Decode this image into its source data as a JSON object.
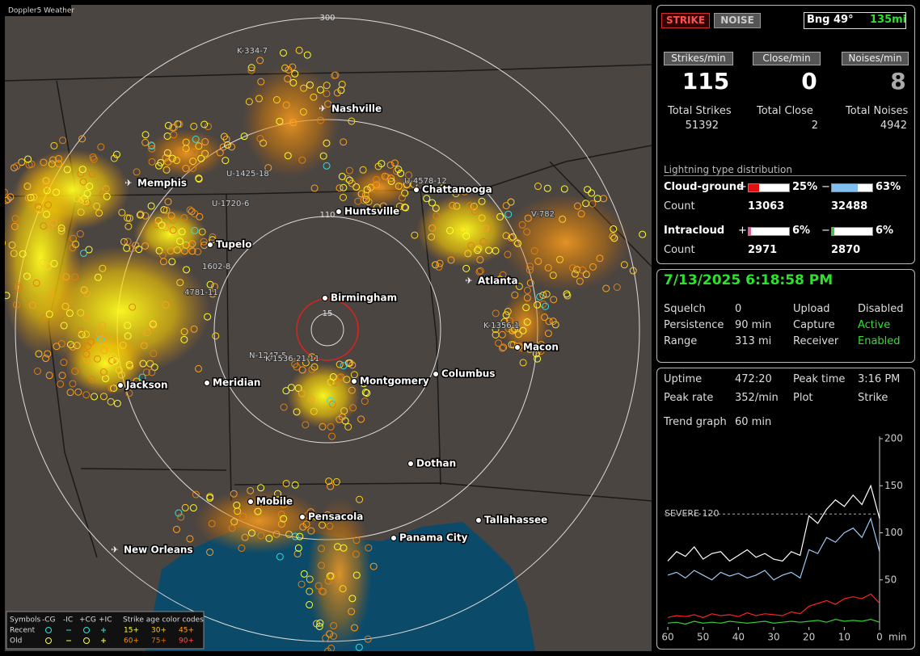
{
  "window_title": "Doppler5 Weather",
  "map": {
    "range_labels": [
      "300",
      "110",
      "15"
    ],
    "cities": [
      "Nashville",
      "Memphis",
      "Chattanooga",
      "Huntsville",
      "Tupelo",
      "Atlanta",
      "Birmingham",
      "Macon",
      "Montgomery",
      "Columbus",
      "Jackson",
      "Meridian",
      "Dothan",
      "Mobile",
      "Pensacola",
      "Tallahassee",
      "Panama City",
      "New Orleans"
    ],
    "storm_ids": [
      "K-334-7",
      "U-1425-18",
      "U-4578-12",
      "U-1720-6",
      "1602-8",
      "4781-11",
      "V-782",
      "K-1356-1",
      "N-1247-5",
      "K-1536-21-11"
    ]
  },
  "legend": {
    "symbols_label": "Symbols",
    "types": [
      "-CG",
      "-IC",
      "+CG",
      "+IC"
    ],
    "age_title": "Strike age color codes",
    "rows": [
      {
        "label": "Recent",
        "ages": [
          "15+",
          "30+",
          "45+"
        ]
      },
      {
        "label": "Old",
        "ages": [
          "60+",
          "75+",
          "90+"
        ]
      }
    ]
  },
  "status": {
    "strike": "STRIKE",
    "noise": "NOISE",
    "bearing": "Bng 49°",
    "distance": "135mi"
  },
  "rates": [
    {
      "header": "Strikes/min",
      "value": 115,
      "total_label": "Total Strikes",
      "total": 51392
    },
    {
      "header": "Close/min",
      "value": 0,
      "total_label": "Total Close",
      "total": 2
    },
    {
      "header": "Noises/min",
      "value": 8,
      "total_label": "Total Noises",
      "total": 4942
    }
  ],
  "distribution": {
    "title": "Lightning type distribution",
    "rows": [
      {
        "label": "Cloud-ground",
        "pos_sign": "+",
        "pos_pct": {
          "value": 25,
          "label": "25%"
        },
        "neg_sign": "−",
        "neg_pct": {
          "value": 63,
          "label": "63%"
        },
        "count_label": "Count",
        "pos_count": 13063,
        "neg_count": 32488
      },
      {
        "label": "Intracloud",
        "pos_sign": "+",
        "pos_pct": {
          "value": 6,
          "label": "6%"
        },
        "neg_sign": "−",
        "neg_pct": {
          "value": 6,
          "label": "6%"
        },
        "count_label": "Count",
        "pos_count": 2971,
        "neg_count": 2870
      }
    ]
  },
  "clock": "7/13/2025 6:18:58 PM",
  "settings": [
    [
      "Squelch",
      0,
      "Upload",
      "Disabled"
    ],
    [
      "Persistence",
      "90 min",
      "Capture",
      "Active"
    ],
    [
      "Range",
      "313 mi",
      "Receiver",
      "Enabled"
    ]
  ],
  "stats": [
    [
      "Uptime",
      "472:20",
      "Peak time",
      "3:16 PM"
    ],
    [
      "Peak rate",
      "352/min",
      "Plot",
      "Strike"
    ]
  ],
  "trend": {
    "label": "Trend graph",
    "window": "60 min",
    "ylim": [
      0,
      200
    ],
    "yticks": [
      50,
      100,
      150,
      200
    ],
    "xlim": [
      60,
      0
    ],
    "xticks": [
      60,
      50,
      40,
      30,
      20,
      10,
      0
    ],
    "x_unit": "min",
    "severe": {
      "value": 120,
      "label": "SEVERE 120"
    },
    "x": [
      60,
      57.5,
      55,
      52.5,
      50,
      47.5,
      45,
      42.5,
      40,
      37.5,
      35,
      32.5,
      30,
      27.5,
      25,
      22.5,
      20,
      17.5,
      15,
      12.5,
      10,
      7.5,
      5,
      2.5,
      0
    ],
    "series": [
      {
        "color": "#ffffff",
        "values": [
          70,
          80,
          75,
          85,
          72,
          78,
          80,
          70,
          76,
          82,
          74,
          78,
          72,
          70,
          80,
          76,
          118,
          110,
          125,
          135,
          128,
          140,
          130,
          150,
          115
        ]
      },
      {
        "color": "#9fc8f0",
        "values": [
          55,
          58,
          52,
          60,
          55,
          50,
          58,
          54,
          57,
          52,
          55,
          60,
          50,
          55,
          58,
          52,
          82,
          78,
          95,
          90,
          100,
          105,
          95,
          115,
          80
        ]
      },
      {
        "color": "#ff2020",
        "values": [
          10,
          12,
          11,
          13,
          10,
          14,
          12,
          13,
          11,
          15,
          12,
          14,
          13,
          12,
          16,
          14,
          22,
          25,
          28,
          24,
          30,
          32,
          30,
          35,
          25
        ]
      },
      {
        "color": "#30d030",
        "values": [
          4,
          5,
          3,
          6,
          4,
          5,
          4,
          6,
          5,
          4,
          5,
          6,
          4,
          5,
          6,
          5,
          6,
          7,
          5,
          8,
          6,
          7,
          6,
          8,
          5
        ]
      }
    ]
  }
}
